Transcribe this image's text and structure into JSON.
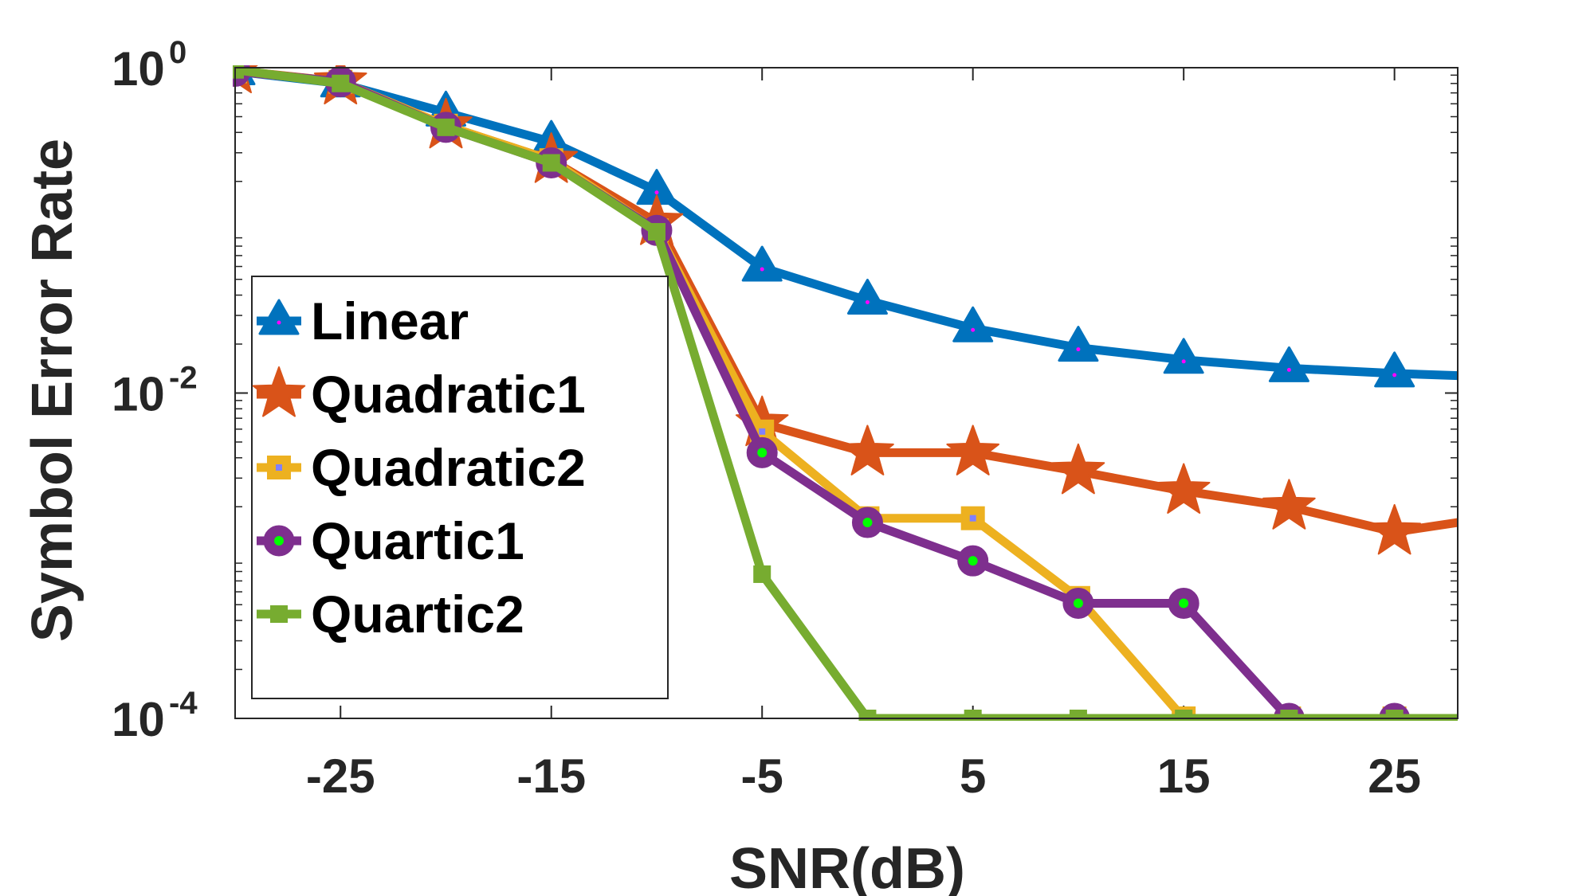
{
  "chart_data": {
    "type": "line",
    "xlabel": "SNR(dB)",
    "ylabel": "Symbol Error Rate",
    "yscale": "log",
    "xlim": [
      -30,
      28
    ],
    "ylim": [
      0.0001,
      1
    ],
    "x_ticks": [
      {
        "value": -25,
        "label": "-25"
      },
      {
        "value": -15,
        "label": "-15"
      },
      {
        "value": -5,
        "label": "-5"
      },
      {
        "value": 5,
        "label": "5"
      },
      {
        "value": 15,
        "label": "15"
      },
      {
        "value": 25,
        "label": "25"
      }
    ],
    "y_ticks": [
      {
        "value": 1,
        "base": "10",
        "exp": "0"
      },
      {
        "value": 0.01,
        "base": "10",
        "exp": "-2"
      },
      {
        "value": 0.0001,
        "base": "10",
        "exp": "-4"
      }
    ],
    "legend_position": "left",
    "grid": false,
    "x": [
      -30,
      -25,
      -20,
      -15,
      -10,
      -5,
      0,
      5,
      10,
      15,
      20,
      25,
      28
    ],
    "series": [
      {
        "name": "Linear",
        "color": "#0072BD",
        "marker": "triangle",
        "values": [
          0.95,
          0.8,
          0.53,
          0.35,
          0.175,
          0.059,
          0.037,
          0.025,
          0.019,
          0.016,
          0.0142,
          0.0132,
          0.0128
        ]
      },
      {
        "name": "Quadratic1",
        "color": "#D95319",
        "marker": "star",
        "values": [
          0.96,
          0.82,
          0.44,
          0.27,
          0.112,
          0.0065,
          0.0043,
          0.0043,
          0.0033,
          0.0025,
          0.002,
          0.0014,
          0.0016
        ]
      },
      {
        "name": "Quadratic2",
        "color": "#EDB120",
        "marker": "square",
        "values": [
          0.95,
          0.82,
          0.44,
          0.27,
          0.1,
          0.0058,
          0.0017,
          0.0017,
          0.00055,
          0.0001,
          0.0001,
          0.0001,
          0.0001
        ]
      },
      {
        "name": "Quartic1",
        "color": "#7E2F8E",
        "marker": "circle",
        "values": [
          0.95,
          0.82,
          0.43,
          0.26,
          0.1,
          0.0043,
          0.0016,
          0.00093,
          0.00051,
          0.00051,
          0.0001,
          0.0001,
          0.0001
        ]
      },
      {
        "name": "Quartic2",
        "color": "#77AC30",
        "marker": "plus",
        "values": [
          0.97,
          0.8,
          0.43,
          0.26,
          0.098,
          0.00077,
          0.0001,
          0.0001,
          0.0001,
          0.0001,
          0.0001,
          0.0001,
          0.0001
        ]
      }
    ]
  }
}
